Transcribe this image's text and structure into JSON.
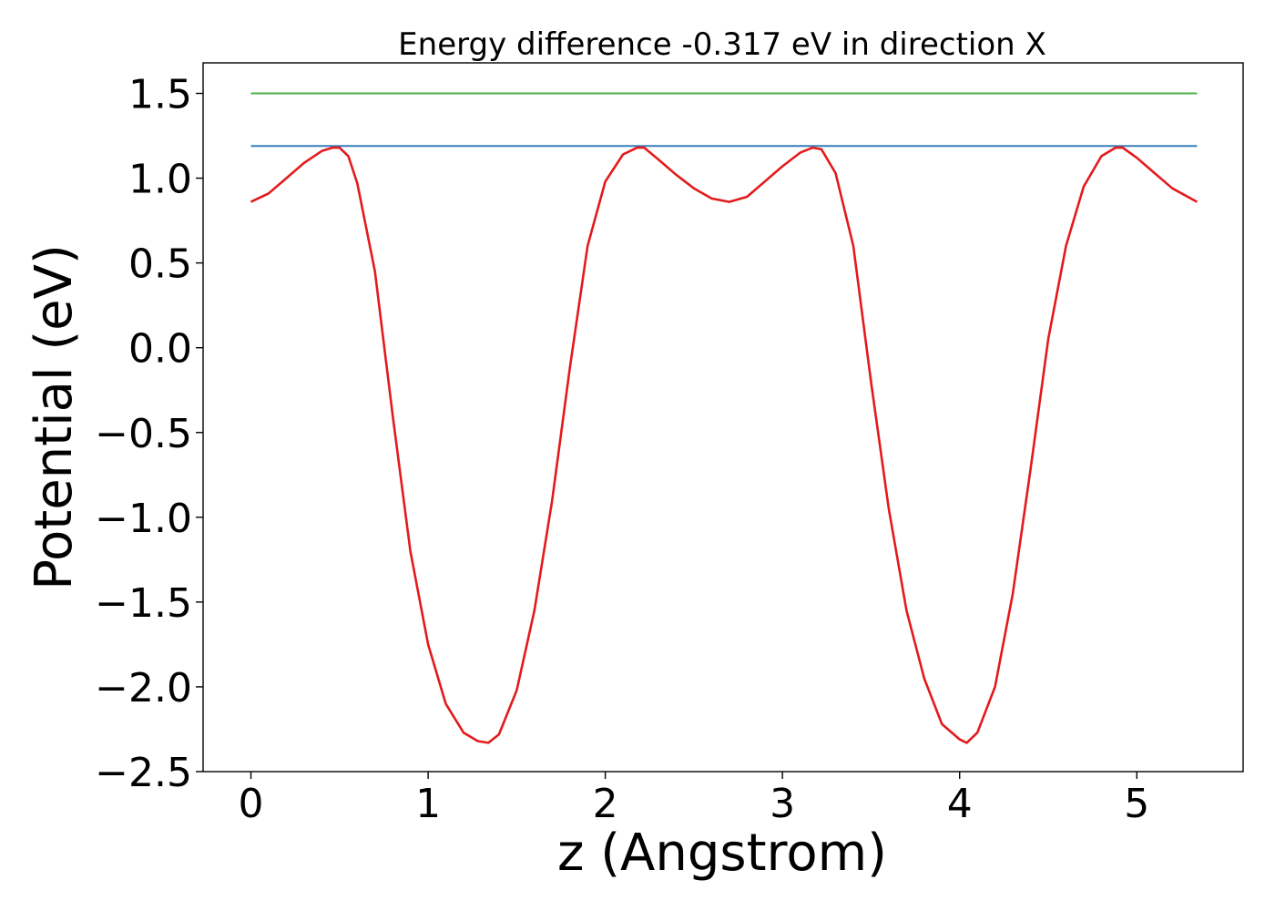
{
  "chart_data": {
    "type": "line",
    "title": "Energy difference -0.317 eV in direction X",
    "xlabel": "z (Angstrom)",
    "ylabel": "Potential (eV)",
    "xlim": [
      -0.27,
      5.6
    ],
    "ylim": [
      -2.5,
      1.68
    ],
    "xticks": [
      0,
      1,
      2,
      3,
      4,
      5
    ],
    "xtick_labels": [
      "0",
      "1",
      "2",
      "3",
      "4",
      "5"
    ],
    "yticks": [
      1.5,
      1.0,
      0.5,
      0.0,
      -0.5,
      -1.0,
      -1.5,
      -2.0,
      -2.5
    ],
    "ytick_labels": [
      "1.5",
      "1.0",
      "0.5",
      "0.0",
      "−0.5",
      "−1.0",
      "−1.5",
      "−2.0",
      "−2.5"
    ],
    "grid": false,
    "colors": {
      "potential": "#e31a1c",
      "level_green": "#4daf4a",
      "level_blue": "#377eb8"
    },
    "series": [
      {
        "key": "potential",
        "x": [
          0.0,
          0.1,
          0.2,
          0.3,
          0.4,
          0.46,
          0.5,
          0.55,
          0.6,
          0.7,
          0.8,
          0.9,
          1.0,
          1.1,
          1.2,
          1.28,
          1.34,
          1.4,
          1.5,
          1.6,
          1.7,
          1.8,
          1.9,
          2.0,
          2.1,
          2.18,
          2.22,
          2.3,
          2.4,
          2.5,
          2.6,
          2.7,
          2.8,
          2.9,
          3.0,
          3.1,
          3.17,
          3.22,
          3.3,
          3.4,
          3.5,
          3.6,
          3.7,
          3.8,
          3.9,
          4.0,
          4.04,
          4.1,
          4.2,
          4.3,
          4.4,
          4.5,
          4.6,
          4.7,
          4.8,
          4.88,
          4.92,
          5.0,
          5.1,
          5.2,
          5.34
        ],
        "y": [
          0.86,
          0.91,
          1.0,
          1.09,
          1.16,
          1.18,
          1.18,
          1.13,
          0.97,
          0.45,
          -0.4,
          -1.2,
          -1.75,
          -2.1,
          -2.27,
          -2.32,
          -2.33,
          -2.28,
          -2.02,
          -1.55,
          -0.9,
          -0.12,
          0.6,
          0.98,
          1.14,
          1.18,
          1.18,
          1.11,
          1.02,
          0.94,
          0.88,
          0.86,
          0.89,
          0.98,
          1.07,
          1.15,
          1.18,
          1.17,
          1.03,
          0.6,
          -0.2,
          -0.95,
          -1.55,
          -1.95,
          -2.22,
          -2.31,
          -2.33,
          -2.27,
          -2.0,
          -1.45,
          -0.72,
          0.05,
          0.6,
          0.95,
          1.13,
          1.18,
          1.18,
          1.12,
          1.03,
          0.94,
          0.86
        ]
      },
      {
        "key": "level_green",
        "x": [
          0.0,
          5.34
        ],
        "y": [
          1.5,
          1.5
        ]
      },
      {
        "key": "level_blue",
        "x": [
          0.0,
          5.34
        ],
        "y": [
          1.19,
          1.19
        ]
      }
    ]
  }
}
